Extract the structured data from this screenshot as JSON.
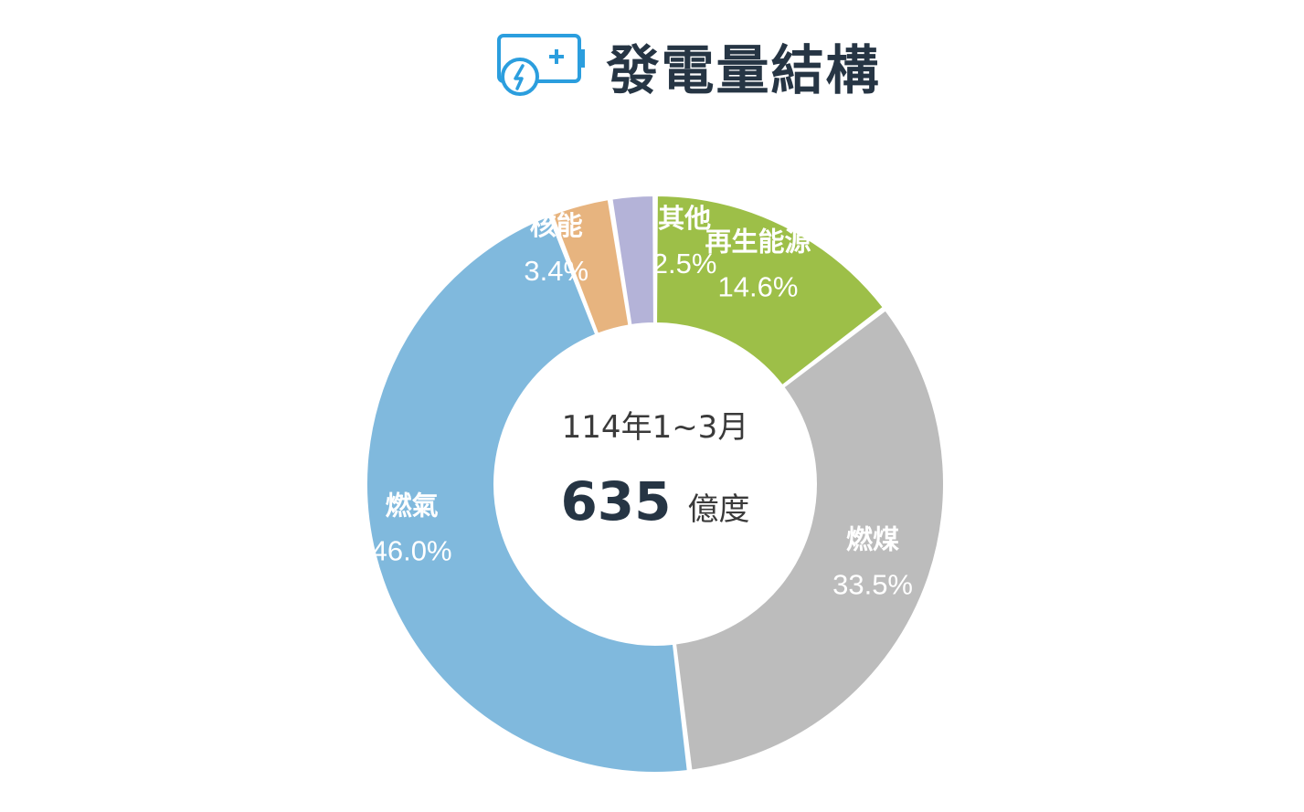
{
  "header": {
    "title": "發電量結構",
    "icon": "battery-charging-icon",
    "icon_color": "#2b9ede"
  },
  "center": {
    "period": "114年1~3月",
    "total": "635",
    "unit": "億度"
  },
  "chart_data": {
    "type": "pie",
    "style": "donut",
    "title": "",
    "slices": [
      {
        "name": "再生能源",
        "value": 14.6,
        "label": "14.6%",
        "color": "#9dbf48"
      },
      {
        "name": "燃煤",
        "value": 33.5,
        "label": "33.5%",
        "color": "#bcbcbc"
      },
      {
        "name": "燃氣",
        "value": 46.0,
        "label": "46.0%",
        "color": "#80b9dd"
      },
      {
        "name": "核能",
        "value": 3.4,
        "label": "3.4%",
        "color": "#e7b47f"
      },
      {
        "name": "其他",
        "value": 2.5,
        "label": "2.5%",
        "color": "#b4b3d8"
      }
    ]
  }
}
